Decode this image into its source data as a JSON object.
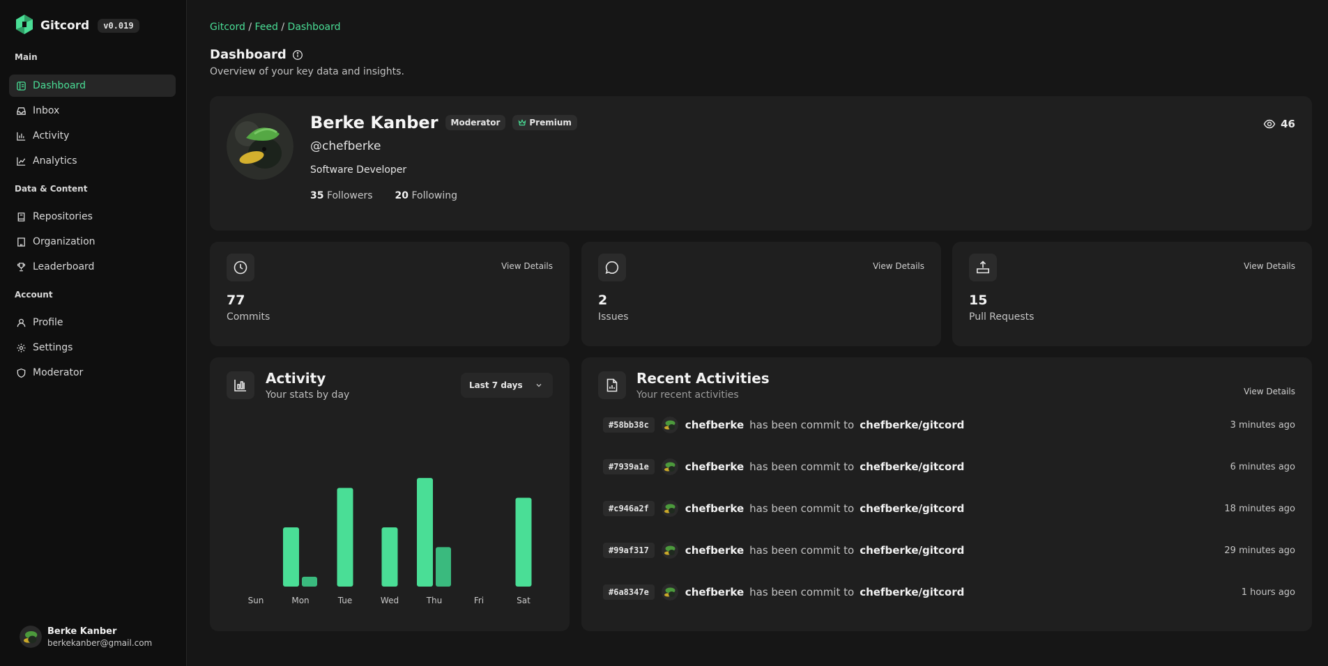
{
  "app": {
    "name": "Gitcord",
    "version": "v0.019"
  },
  "sidebar": {
    "sections": [
      {
        "title": "Main",
        "items": [
          {
            "label": "Dashboard",
            "icon": "dashboard-icon",
            "active": true
          },
          {
            "label": "Inbox",
            "icon": "inbox-icon"
          },
          {
            "label": "Activity",
            "icon": "bar-chart-icon"
          },
          {
            "label": "Analytics",
            "icon": "line-chart-icon"
          }
        ]
      },
      {
        "title": "Data & Content",
        "items": [
          {
            "label": "Repositories",
            "icon": "book-icon"
          },
          {
            "label": "Organization",
            "icon": "building-icon"
          },
          {
            "label": "Leaderboard",
            "icon": "trophy-icon"
          }
        ]
      },
      {
        "title": "Account",
        "items": [
          {
            "label": "Profile",
            "icon": "user-icon"
          },
          {
            "label": "Settings",
            "icon": "gear-icon"
          },
          {
            "label": "Moderator",
            "icon": "shield-icon"
          }
        ]
      }
    ],
    "user": {
      "name": "Berke Kanber",
      "email": "berkekanber@gmail.com"
    }
  },
  "breadcrumb": {
    "items": [
      "Gitcord",
      "Feed",
      "Dashboard"
    ],
    "separator": "/"
  },
  "page": {
    "title": "Dashboard",
    "subtitle": "Overview of your key data and insights."
  },
  "profile": {
    "name": "Berke Kanber",
    "badges": {
      "moderator": "Moderator",
      "premium": "Premium"
    },
    "handle": "@chefberke",
    "role": "Software Developer",
    "followers_count": "35",
    "followers_label": "Followers",
    "following_count": "20",
    "following_label": "Following",
    "views": "46"
  },
  "stats": [
    {
      "value": "77",
      "label": "Commits",
      "icon": "clock-icon",
      "link": "View Details"
    },
    {
      "value": "2",
      "label": "Issues",
      "icon": "message-circle-icon",
      "link": "View Details"
    },
    {
      "value": "15",
      "label": "Pull Requests",
      "icon": "upload-icon",
      "link": "View Details"
    }
  ],
  "activity": {
    "title": "Activity",
    "subtitle": "Your stats by day",
    "range": "Last 7 days"
  },
  "chart_data": {
    "type": "bar",
    "categories": [
      "Sun",
      "Mon",
      "Tue",
      "Wed",
      "Thu",
      "Fri",
      "Sat"
    ],
    "series": [
      {
        "values": [
          0,
          12,
          20,
          12,
          22,
          0,
          18
        ]
      },
      {
        "values": [
          0,
          2,
          0,
          0,
          8,
          0,
          0
        ]
      }
    ],
    "ylim": [
      0,
      24
    ],
    "grid": false,
    "colors": [
      "#4ade96",
      "#3aba7e"
    ]
  },
  "recent": {
    "title": "Recent Activities",
    "subtitle": "Your recent activities",
    "link": "View Details",
    "items": [
      {
        "hash": "#58bb38c",
        "user": "chefberke",
        "verb": "has been commit to",
        "repo": "chefberke/gitcord",
        "time": "3 minutes ago"
      },
      {
        "hash": "#7939a1e",
        "user": "chefberke",
        "verb": "has been commit to",
        "repo": "chefberke/gitcord",
        "time": "6 minutes ago"
      },
      {
        "hash": "#c946a2f",
        "user": "chefberke",
        "verb": "has been commit to",
        "repo": "chefberke/gitcord",
        "time": "18 minutes ago"
      },
      {
        "hash": "#99af317",
        "user": "chefberke",
        "verb": "has been commit to",
        "repo": "chefberke/gitcord",
        "time": "29 minutes ago"
      },
      {
        "hash": "#6a8347e",
        "user": "chefberke",
        "verb": "has been commit to",
        "repo": "chefberke/gitcord",
        "time": "1 hours ago"
      }
    ]
  },
  "colors": {
    "accent": "#4ade96",
    "background": "#161616",
    "card": "#1f1f1f",
    "sidebar": "#0f0f0f"
  }
}
